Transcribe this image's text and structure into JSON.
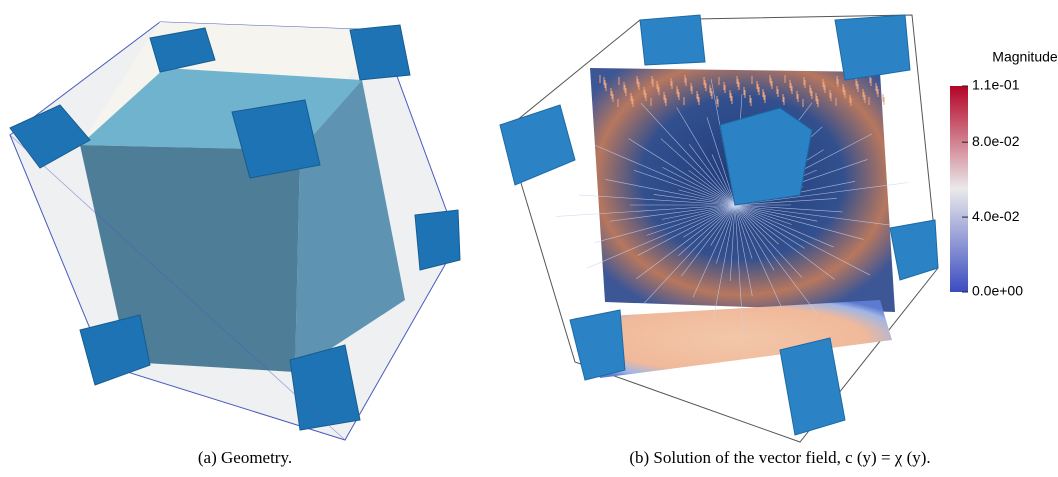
{
  "figure": {
    "panels": [
      {
        "caption": "(a) Geometry."
      },
      {
        "caption": "(b) Solution of the vector field, c (y) = χ (y).",
        "colorbar": {
          "title": "Magnitude",
          "ticks": [
            {
              "value": 0,
              "label": "0.0e+00"
            },
            {
              "value": 0.04,
              "label": "4.0e-02"
            },
            {
              "value": 0.08,
              "label": "8.0e-02"
            },
            {
              "value": 0.11,
              "label": "1.1e-01"
            }
          ]
        }
      }
    ]
  }
}
